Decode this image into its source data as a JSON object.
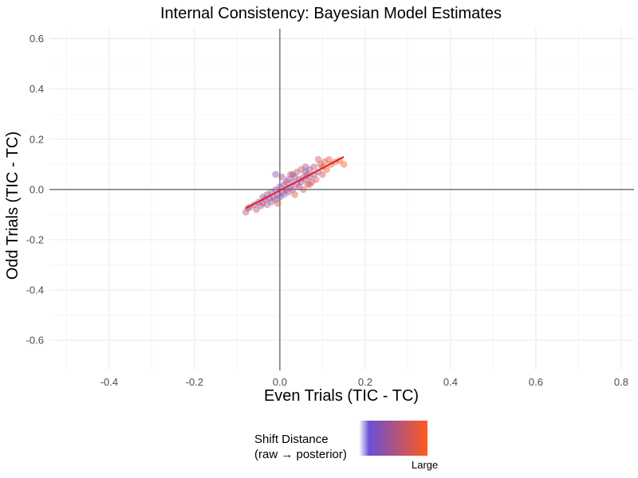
{
  "chart_data": {
    "type": "scatter",
    "title": "Internal Consistency: Bayesian Model Estimates",
    "xlabel": "Even Trials (TIC - TC)",
    "ylabel": "Odd Trials (TIC - TC)",
    "xlim": [
      -0.54,
      0.83
    ],
    "ylim": [
      -0.72,
      0.64
    ],
    "xticks": [
      -0.4,
      -0.2,
      0.0,
      0.2,
      0.4,
      0.6,
      0.8
    ],
    "xtick_labels": [
      "-0.4",
      "-0.2",
      "0.0",
      "0.2",
      "0.4",
      "0.6",
      "0.8"
    ],
    "yticks": [
      -0.6,
      -0.4,
      -0.2,
      0.0,
      0.2,
      0.4,
      0.6
    ],
    "ytick_labels": [
      "-0.6",
      "-0.4",
      "-0.2",
      "0.0",
      "0.2",
      "0.4",
      "0.6"
    ],
    "grid": true,
    "reference_lines": {
      "x": 0,
      "y": 0
    },
    "fit_line": {
      "x": [
        -0.08,
        0.15
      ],
      "y": [
        -0.075,
        0.13
      ],
      "color": "#e8201c"
    },
    "legend": {
      "title_line1": "Shift Distance",
      "title_line2": "(raw → posterior)",
      "label_high": "Large",
      "position": "bottom",
      "color_low": "#ffffff",
      "color_mid": "#6a4fd6",
      "color_high": "#ff5a1e"
    },
    "points": [
      {
        "x": -0.08,
        "y": -0.09,
        "s": 0.6
      },
      {
        "x": -0.075,
        "y": -0.075,
        "s": 0.5
      },
      {
        "x": -0.07,
        "y": -0.07,
        "s": 0.3
      },
      {
        "x": -0.06,
        "y": -0.06,
        "s": 0.4
      },
      {
        "x": -0.055,
        "y": -0.08,
        "s": 0.5
      },
      {
        "x": -0.05,
        "y": -0.05,
        "s": 0.3
      },
      {
        "x": -0.045,
        "y": -0.065,
        "s": 0.4
      },
      {
        "x": -0.04,
        "y": -0.03,
        "s": 0.3
      },
      {
        "x": -0.04,
        "y": -0.055,
        "s": 0.6
      },
      {
        "x": -0.035,
        "y": -0.04,
        "s": 0.2
      },
      {
        "x": -0.03,
        "y": -0.02,
        "s": 0.3
      },
      {
        "x": -0.03,
        "y": -0.06,
        "s": 0.5
      },
      {
        "x": -0.025,
        "y": -0.035,
        "s": 0.2
      },
      {
        "x": -0.02,
        "y": -0.05,
        "s": 0.4
      },
      {
        "x": -0.02,
        "y": -0.01,
        "s": 0.3
      },
      {
        "x": -0.015,
        "y": -0.03,
        "s": 0.2
      },
      {
        "x": -0.01,
        "y": 0.0,
        "s": 0.3
      },
      {
        "x": -0.01,
        "y": -0.04,
        "s": 0.4
      },
      {
        "x": -0.005,
        "y": -0.02,
        "s": 0.3
      },
      {
        "x": -0.005,
        "y": -0.055,
        "s": 0.7
      },
      {
        "x": 0.0,
        "y": 0.01,
        "s": 0.3
      },
      {
        "x": 0.0,
        "y": -0.03,
        "s": 0.3
      },
      {
        "x": 0.005,
        "y": -0.01,
        "s": 0.2
      },
      {
        "x": 0.005,
        "y": 0.05,
        "s": 0.4
      },
      {
        "x": 0.01,
        "y": 0.02,
        "s": 0.3
      },
      {
        "x": 0.01,
        "y": -0.02,
        "s": 0.3
      },
      {
        "x": 0.015,
        "y": 0.0,
        "s": 0.2
      },
      {
        "x": 0.015,
        "y": 0.03,
        "s": 0.5
      },
      {
        "x": 0.02,
        "y": -0.01,
        "s": 0.4
      },
      {
        "x": 0.02,
        "y": 0.04,
        "s": 0.3
      },
      {
        "x": 0.025,
        "y": 0.01,
        "s": 0.2
      },
      {
        "x": 0.025,
        "y": 0.06,
        "s": 0.6
      },
      {
        "x": 0.03,
        "y": 0.0,
        "s": 0.5
      },
      {
        "x": 0.03,
        "y": 0.03,
        "s": 0.3
      },
      {
        "x": 0.035,
        "y": -0.02,
        "s": 0.7
      },
      {
        "x": 0.035,
        "y": 0.05,
        "s": 0.4
      },
      {
        "x": 0.04,
        "y": 0.02,
        "s": 0.3
      },
      {
        "x": 0.04,
        "y": 0.07,
        "s": 0.6
      },
      {
        "x": 0.045,
        "y": 0.01,
        "s": 0.5
      },
      {
        "x": 0.045,
        "y": 0.04,
        "s": 0.3
      },
      {
        "x": 0.05,
        "y": 0.03,
        "s": 0.4
      },
      {
        "x": 0.05,
        "y": 0.08,
        "s": 0.7
      },
      {
        "x": 0.055,
        "y": 0.0,
        "s": 0.6
      },
      {
        "x": 0.055,
        "y": 0.05,
        "s": 0.3
      },
      {
        "x": 0.06,
        "y": 0.04,
        "s": 0.4
      },
      {
        "x": 0.06,
        "y": 0.07,
        "s": 0.5
      },
      {
        "x": 0.065,
        "y": 0.02,
        "s": 0.7
      },
      {
        "x": 0.065,
        "y": 0.06,
        "s": 0.3
      },
      {
        "x": 0.07,
        "y": 0.05,
        "s": 0.5
      },
      {
        "x": 0.07,
        "y": 0.08,
        "s": 0.4
      },
      {
        "x": 0.075,
        "y": 0.03,
        "s": 0.6
      },
      {
        "x": 0.08,
        "y": 0.06,
        "s": 0.4
      },
      {
        "x": 0.08,
        "y": 0.09,
        "s": 0.5
      },
      {
        "x": 0.085,
        "y": 0.04,
        "s": 0.7
      },
      {
        "x": 0.09,
        "y": 0.07,
        "s": 0.5
      },
      {
        "x": 0.095,
        "y": 0.1,
        "s": 0.6
      },
      {
        "x": 0.1,
        "y": 0.09,
        "s": 0.8
      },
      {
        "x": 0.1,
        "y": 0.06,
        "s": 0.7
      },
      {
        "x": 0.105,
        "y": 0.11,
        "s": 0.8
      },
      {
        "x": 0.11,
        "y": 0.08,
        "s": 0.9
      },
      {
        "x": 0.115,
        "y": 0.12,
        "s": 0.8
      },
      {
        "x": 0.12,
        "y": 0.1,
        "s": 0.9
      },
      {
        "x": 0.13,
        "y": 0.11,
        "s": 0.8
      },
      {
        "x": 0.14,
        "y": 0.115,
        "s": 0.9
      },
      {
        "x": 0.15,
        "y": 0.1,
        "s": 1.0
      },
      {
        "x": 0.09,
        "y": 0.12,
        "s": 0.7
      },
      {
        "x": 0.07,
        "y": 0.02,
        "s": 0.8
      },
      {
        "x": 0.03,
        "y": 0.06,
        "s": 0.4
      },
      {
        "x": -0.01,
        "y": 0.06,
        "s": 0.2
      },
      {
        "x": 0.06,
        "y": 0.09,
        "s": 0.3
      }
    ]
  }
}
